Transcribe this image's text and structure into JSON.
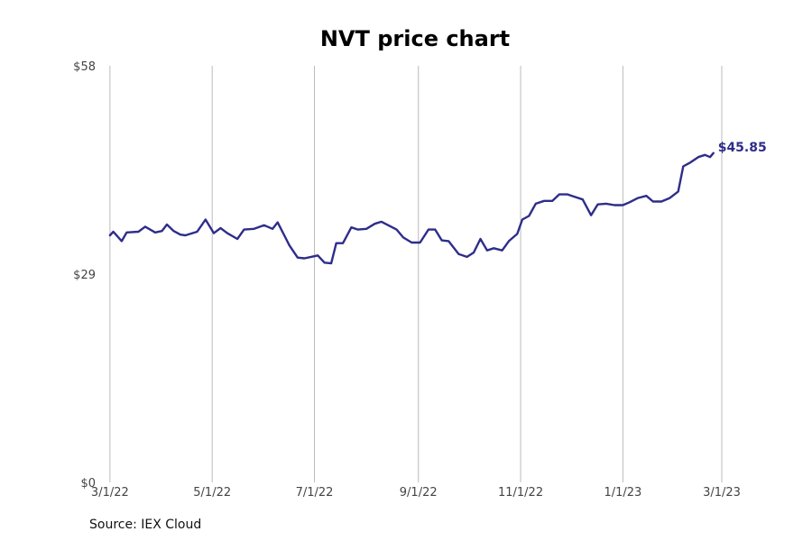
{
  "chart_data": {
    "type": "line",
    "title": "NVT price chart",
    "xlabel": "",
    "ylabel": "",
    "ylim": [
      0,
      58
    ],
    "y_ticks": [
      {
        "value": 0,
        "label": "$0"
      },
      {
        "value": 29,
        "label": "$29"
      },
      {
        "value": 58,
        "label": "$58"
      }
    ],
    "x_ticks": [
      "3/1/22",
      "5/1/22",
      "7/1/22",
      "9/1/22",
      "11/1/22",
      "1/1/23",
      "3/1/23"
    ],
    "xlim": [
      "2022-02-28",
      "2023-03-01"
    ],
    "grid": "vertical",
    "series": [
      {
        "color": "#2e2d8a",
        "last_label": "$45.85",
        "points": [
          [
            "2022-03-01",
            34.4
          ],
          [
            "2022-03-03",
            34.9
          ],
          [
            "2022-03-08",
            33.6
          ],
          [
            "2022-03-11",
            34.8
          ],
          [
            "2022-03-18",
            34.9
          ],
          [
            "2022-03-22",
            35.6
          ],
          [
            "2022-03-28",
            34.8
          ],
          [
            "2022-04-01",
            35.0
          ],
          [
            "2022-04-04",
            35.9
          ],
          [
            "2022-04-08",
            35.0
          ],
          [
            "2022-04-12",
            34.5
          ],
          [
            "2022-04-15",
            34.4
          ],
          [
            "2022-04-22",
            34.9
          ],
          [
            "2022-04-27",
            36.6
          ],
          [
            "2022-05-02",
            34.7
          ],
          [
            "2022-05-06",
            35.4
          ],
          [
            "2022-05-10",
            34.7
          ],
          [
            "2022-05-16",
            33.9
          ],
          [
            "2022-05-20",
            35.2
          ],
          [
            "2022-05-26",
            35.3
          ],
          [
            "2022-06-01",
            35.8
          ],
          [
            "2022-06-06",
            35.3
          ],
          [
            "2022-06-09",
            36.2
          ],
          [
            "2022-06-13",
            34.4
          ],
          [
            "2022-06-16",
            33.0
          ],
          [
            "2022-06-21",
            31.3
          ],
          [
            "2022-06-25",
            31.2
          ],
          [
            "2022-06-29",
            31.4
          ],
          [
            "2022-07-03",
            31.6
          ],
          [
            "2022-07-07",
            30.6
          ],
          [
            "2022-07-11",
            30.5
          ],
          [
            "2022-07-14",
            33.3
          ],
          [
            "2022-07-18",
            33.3
          ],
          [
            "2022-07-23",
            35.5
          ],
          [
            "2022-07-27",
            35.2
          ],
          [
            "2022-08-01",
            35.3
          ],
          [
            "2022-08-06",
            36.0
          ],
          [
            "2022-08-10",
            36.3
          ],
          [
            "2022-08-14",
            35.8
          ],
          [
            "2022-08-19",
            35.2
          ],
          [
            "2022-08-23",
            34.1
          ],
          [
            "2022-08-28",
            33.4
          ],
          [
            "2022-09-02",
            33.4
          ],
          [
            "2022-09-07",
            35.2
          ],
          [
            "2022-09-11",
            35.2
          ],
          [
            "2022-09-15",
            33.7
          ],
          [
            "2022-09-19",
            33.6
          ],
          [
            "2022-09-25",
            31.8
          ],
          [
            "2022-09-30",
            31.4
          ],
          [
            "2022-10-04",
            32.0
          ],
          [
            "2022-10-08",
            33.9
          ],
          [
            "2022-10-12",
            32.3
          ],
          [
            "2022-10-16",
            32.6
          ],
          [
            "2022-10-21",
            32.3
          ],
          [
            "2022-10-25",
            33.6
          ],
          [
            "2022-10-30",
            34.6
          ],
          [
            "2022-11-02",
            36.6
          ],
          [
            "2022-11-06",
            37.1
          ],
          [
            "2022-11-10",
            38.8
          ],
          [
            "2022-11-15",
            39.2
          ],
          [
            "2022-11-20",
            39.2
          ],
          [
            "2022-11-24",
            40.1
          ],
          [
            "2022-11-29",
            40.1
          ],
          [
            "2022-12-04",
            39.7
          ],
          [
            "2022-12-08",
            39.4
          ],
          [
            "2022-12-13",
            37.2
          ],
          [
            "2022-12-17",
            38.7
          ],
          [
            "2022-12-22",
            38.8
          ],
          [
            "2022-12-27",
            38.6
          ],
          [
            "2023-01-01",
            38.6
          ],
          [
            "2023-01-05",
            39.0
          ],
          [
            "2023-01-10",
            39.6
          ],
          [
            "2023-01-15",
            39.9
          ],
          [
            "2023-01-19",
            39.1
          ],
          [
            "2023-01-24",
            39.1
          ],
          [
            "2023-01-29",
            39.6
          ],
          [
            "2023-02-03",
            40.5
          ],
          [
            "2023-02-06",
            44.0
          ],
          [
            "2023-02-10",
            44.5
          ],
          [
            "2023-02-15",
            45.3
          ],
          [
            "2023-02-19",
            45.6
          ],
          [
            "2023-02-22",
            45.3
          ],
          [
            "2023-02-24",
            45.85
          ]
        ]
      }
    ]
  },
  "footer": {
    "source": "Source: IEX Cloud"
  }
}
